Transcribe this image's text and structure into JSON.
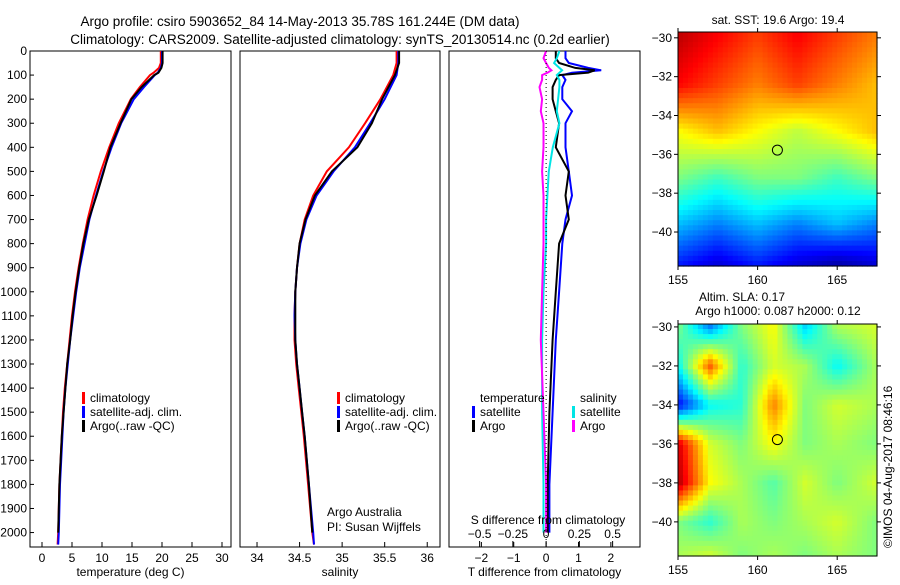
{
  "title": {
    "line1": "Argo profile: csiro 5903652_84 14-May-2013 35.78S 161.244E (DM data)",
    "line2": "Climatology: CARS2009. Satellite-adjusted climatology: synTS_20130514.nc (0.2d earlier)"
  },
  "colors": {
    "climatology": "#ff0000",
    "satellite": "#0000ff",
    "argo": "#000000",
    "sal_satellite": "#00e5e5",
    "sal_argo": "#ff00ff"
  },
  "legends": {
    "profile": [
      "climatology",
      "satellite-adj. clim.",
      "Argo(..raw -QC)"
    ],
    "diff": {
      "temp_header": "temperature",
      "sal_header": "salinity",
      "temp_items": [
        "satellite",
        "Argo"
      ],
      "sal_items": [
        "satellite",
        "Argo"
      ]
    }
  },
  "credits": {
    "line1": "Argo Australia",
    "line2": "PI: Susan Wijffels"
  },
  "timestamp": "©IMOS 04-Aug-2017 08:46:16",
  "chart_data": [
    {
      "type": "line",
      "id": "temperature",
      "xlabel": "temperature (deg C)",
      "ylabel": "",
      "xlim": [
        -2,
        31.5
      ],
      "ylim": [
        2060,
        0
      ],
      "xticks": [
        0,
        5,
        10,
        15,
        20,
        25,
        30
      ],
      "yticks": [
        0,
        100,
        200,
        300,
        400,
        500,
        600,
        700,
        800,
        900,
        1000,
        1100,
        1200,
        1300,
        1400,
        1500,
        1600,
        1700,
        1800,
        1900,
        2000
      ],
      "depth": [
        0,
        50,
        70,
        90,
        100,
        150,
        200,
        300,
        400,
        500,
        600,
        700,
        800,
        900,
        1000,
        1100,
        1200,
        1300,
        1400,
        1500,
        1600,
        1800,
        2000,
        2050
      ],
      "series": [
        {
          "name": "climatology",
          "color_key": "climatology",
          "values": [
            19.8,
            19.8,
            19.5,
            18.6,
            18.0,
            16.3,
            14.8,
            12.8,
            11.2,
            9.8,
            8.6,
            7.6,
            6.8,
            6.1,
            5.5,
            5.0,
            4.6,
            4.2,
            3.8,
            3.5,
            3.3,
            2.9,
            2.7,
            2.6
          ]
        },
        {
          "name": "satellite-adj. clim.",
          "color_key": "satellite",
          "values": [
            20.0,
            20.0,
            19.8,
            19.3,
            18.8,
            17.0,
            15.3,
            13.2,
            11.6,
            10.2,
            9.0,
            7.9,
            7.1,
            6.3,
            5.7,
            5.2,
            4.7,
            4.3,
            3.9,
            3.6,
            3.4,
            3.0,
            2.8,
            2.7
          ]
        },
        {
          "name": "Argo(..raw -QC)",
          "color_key": "argo",
          "values": [
            20.1,
            20.1,
            19.9,
            19.4,
            18.7,
            16.6,
            14.9,
            13.1,
            11.4,
            10.3,
            9.1,
            7.8,
            6.9,
            6.2,
            5.6,
            5.1,
            4.7,
            4.2,
            3.9,
            3.6,
            3.3,
            2.9,
            2.7,
            null
          ]
        }
      ]
    },
    {
      "type": "line",
      "id": "salinity",
      "xlabel": "salinity",
      "ylabel": "",
      "xlim": [
        33.8,
        36.15
      ],
      "ylim": [
        2060,
        0
      ],
      "xticks": [
        34,
        34.5,
        35,
        35.5,
        36
      ],
      "depth": [
        0,
        50,
        100,
        200,
        300,
        400,
        500,
        600,
        700,
        800,
        900,
        1000,
        1100,
        1200,
        1300,
        1400,
        1500,
        1600,
        1800,
        2000,
        2050
      ],
      "series": [
        {
          "name": "climatology",
          "color_key": "climatology",
          "values": [
            35.64,
            35.64,
            35.6,
            35.45,
            35.27,
            35.08,
            34.82,
            34.66,
            34.56,
            34.5,
            34.47,
            34.45,
            34.44,
            34.44,
            34.46,
            34.49,
            34.52,
            34.55,
            34.6,
            34.65,
            34.67
          ]
        },
        {
          "name": "satellite-adj. clim.",
          "color_key": "satellite",
          "values": [
            35.66,
            35.66,
            35.64,
            35.5,
            35.33,
            35.15,
            34.9,
            34.7,
            34.58,
            34.51,
            34.47,
            34.45,
            34.44,
            34.45,
            34.47,
            34.5,
            34.53,
            34.56,
            34.61,
            34.66,
            34.67
          ]
        },
        {
          "name": "Argo(..raw -QC)",
          "color_key": "argo",
          "values": [
            35.67,
            35.67,
            35.62,
            35.47,
            35.35,
            35.18,
            34.88,
            34.68,
            34.57,
            34.5,
            34.47,
            34.45,
            34.45,
            34.45,
            34.47,
            34.5,
            34.53,
            34.56,
            34.61,
            34.65,
            null
          ]
        }
      ]
    },
    {
      "type": "line",
      "id": "difference",
      "xlabel": "T difference from climatology",
      "x2label": "S difference from climatology",
      "xlim": [
        -3.0,
        2.9
      ],
      "x2lim": [
        -0.5,
        0.5
      ],
      "xticks": [
        -2,
        -1,
        0,
        1,
        2
      ],
      "x2ticks": [
        -0.5,
        -0.25,
        0,
        0.25,
        0.5
      ],
      "ylim": [
        2060,
        0
      ],
      "depth": [
        0,
        30,
        50,
        70,
        80,
        90,
        100,
        120,
        150,
        200,
        250,
        300,
        400,
        500,
        600,
        700,
        800,
        1000,
        1200,
        1500,
        1800,
        2000
      ],
      "series": [
        {
          "name": "temperature satellite",
          "axis": "T",
          "color_key": "satellite",
          "values": [
            0.6,
            0.6,
            0.7,
            1.3,
            1.7,
            0.8,
            0.5,
            0.6,
            0.5,
            0.5,
            0.8,
            0.6,
            0.6,
            0.7,
            0.8,
            0.6,
            0.5,
            0.4,
            0.3,
            0.2,
            0.1,
            0.1
          ]
        },
        {
          "name": "temperature Argo",
          "axis": "T",
          "color_key": "argo",
          "values": [
            0.3,
            0.3,
            0.4,
            0.9,
            1.5,
            1.3,
            0.4,
            0.3,
            0.2,
            0.2,
            0.3,
            0.4,
            0.3,
            0.7,
            0.6,
            0.7,
            0.4,
            0.3,
            0.2,
            0.1,
            0.05,
            0.05
          ]
        },
        {
          "name": "salinity satellite",
          "axis": "S",
          "color_key": "sal_satellite",
          "values": [
            0.1,
            0.08,
            0.06,
            0.1,
            0.12,
            0.1,
            0.08,
            0.1,
            0.1,
            0.09,
            0.08,
            0.1,
            0.05,
            0.02,
            0.01,
            0.0,
            0.0,
            -0.02,
            -0.03,
            -0.03,
            -0.02,
            -0.02
          ]
        },
        {
          "name": "salinity Argo",
          "axis": "S",
          "color_key": "sal_argo",
          "values": [
            0.0,
            -0.02,
            0.0,
            0.02,
            0.04,
            0.01,
            -0.03,
            -0.03,
            -0.05,
            -0.03,
            -0.04,
            -0.02,
            -0.02,
            -0.03,
            -0.02,
            -0.02,
            -0.02,
            -0.03,
            -0.04,
            -0.02,
            0.0,
            0.0
          ]
        }
      ]
    },
    {
      "type": "heatmap",
      "id": "sst_map",
      "title": "sat. SST: 19.6 Argo: 19.4",
      "xlim": [
        155,
        167.5
      ],
      "ylim": [
        -41.75,
        -29.7
      ],
      "xticks": [
        155,
        160,
        165
      ],
      "yticks": [
        -30,
        -32,
        -34,
        -36,
        -38,
        -40
      ],
      "clim": [
        15,
        23
      ],
      "grid_lat": [
        -30,
        -32.4,
        -34.8,
        -37.2,
        -39.6,
        -42
      ],
      "grid_lon": [
        155,
        157.5,
        160,
        162.5,
        165,
        167.5
      ],
      "values": [
        [
          22.5,
          22,
          21.5,
          22,
          21.5,
          21
        ],
        [
          22,
          21.5,
          21,
          21.5,
          21,
          20.5
        ],
        [
          20,
          20.5,
          20,
          19.5,
          20,
          20.5
        ],
        [
          19,
          18.5,
          19,
          19,
          18.5,
          19
        ],
        [
          17.5,
          17,
          17.5,
          17,
          17.5,
          17
        ],
        [
          16,
          15.5,
          16,
          15.5,
          15,
          15.5
        ]
      ],
      "marker": {
        "lon": 161.244,
        "lat": -35.78
      }
    },
    {
      "type": "heatmap",
      "id": "sla_map",
      "title": "Altim. SLA: 0.17",
      "subtitle": "Argo h1000: 0.087 h2000: 0.12",
      "xlim": [
        155,
        167.5
      ],
      "ylim": [
        -41.75,
        -29.85
      ],
      "xticks": [
        155,
        160,
        165
      ],
      "yticks": [
        -30,
        -32,
        -34,
        -36,
        -38,
        -40
      ],
      "clim": [
        -0.6,
        0.6
      ],
      "grid_lat": [
        -30,
        -32,
        -34,
        -36,
        -38,
        -40,
        -41.75
      ],
      "grid_lon": [
        155,
        157,
        159,
        161,
        163,
        165,
        167.5
      ],
      "values": [
        [
          0,
          -0.3,
          0,
          0.15,
          -0.2,
          0.05,
          0.1
        ],
        [
          -0.15,
          0.35,
          -0.1,
          0.1,
          0.05,
          -0.15,
          0.05
        ],
        [
          -0.45,
          -0.15,
          -0.1,
          0.3,
          0.0,
          0.1,
          0.05
        ],
        [
          0.5,
          0.1,
          0.0,
          0.15,
          0.0,
          0.05,
          0
        ],
        [
          0.55,
          0.15,
          0.05,
          -0.05,
          0.1,
          0.0,
          0.1
        ],
        [
          0.0,
          -0.1,
          0.05,
          0.0,
          0.05,
          0.1,
          0
        ],
        [
          0.05,
          0.1,
          0,
          0.05,
          0,
          0.05,
          0
        ]
      ],
      "marker": {
        "lon": 161.244,
        "lat": -35.78
      }
    }
  ]
}
